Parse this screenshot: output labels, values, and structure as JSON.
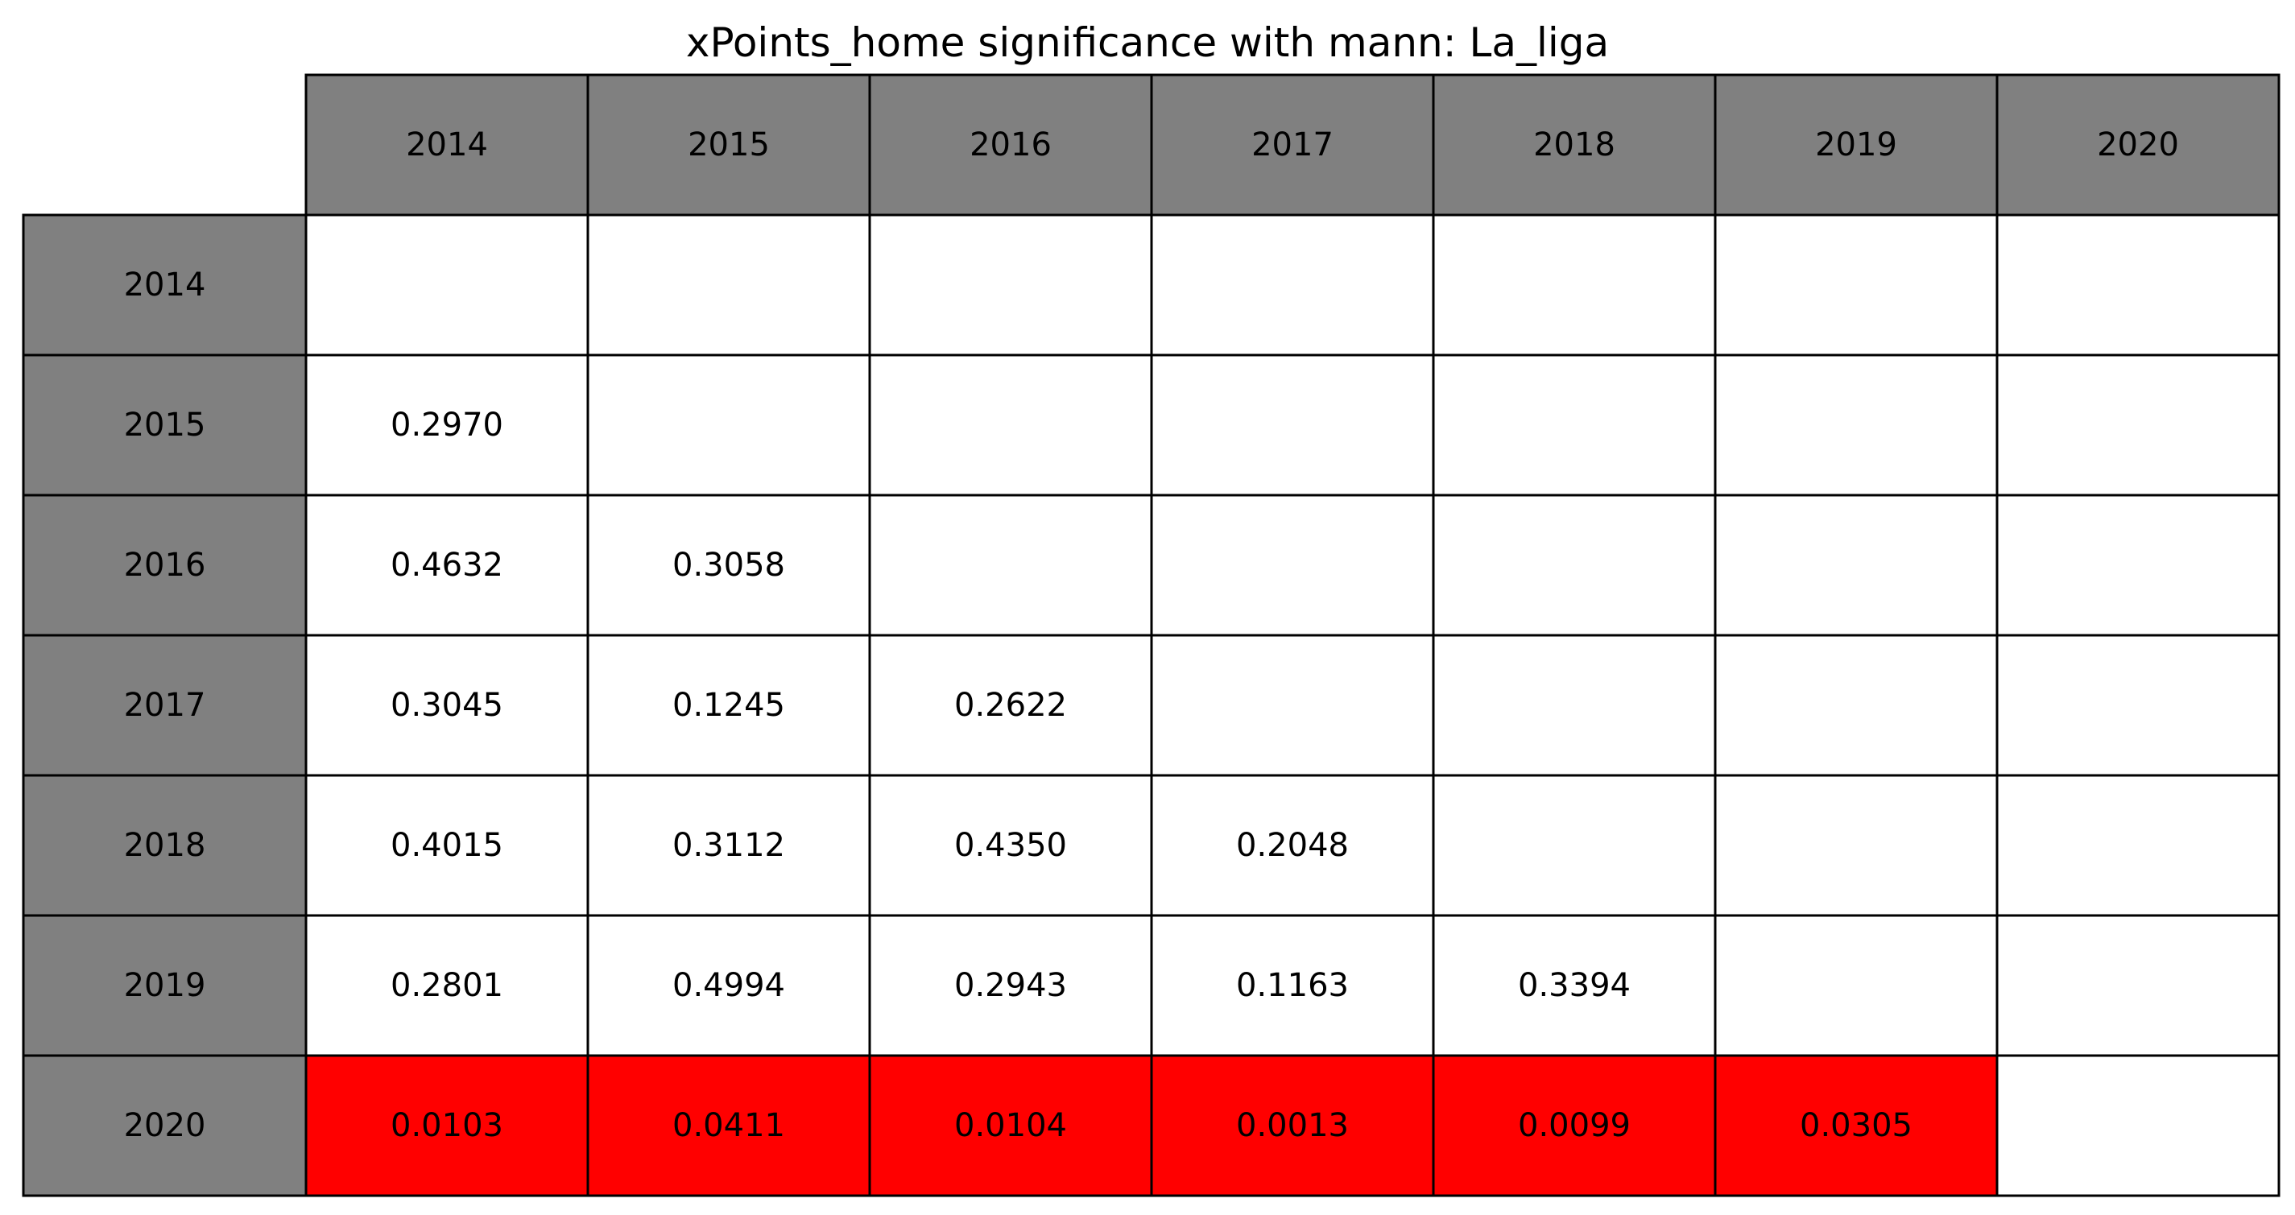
{
  "chart_data": {
    "type": "table",
    "title": "xPoints_home significance with mann: La_liga",
    "columns": [
      "2014",
      "2015",
      "2016",
      "2017",
      "2018",
      "2019",
      "2020"
    ],
    "rows": [
      "2014",
      "2015",
      "2016",
      "2017",
      "2018",
      "2019",
      "2020"
    ],
    "cells": [
      [
        "",
        "",
        "",
        "",
        "",
        "",
        ""
      ],
      [
        "0.2970",
        "",
        "",
        "",
        "",
        "",
        ""
      ],
      [
        "0.4632",
        "0.3058",
        "",
        "",
        "",
        "",
        ""
      ],
      [
        "0.3045",
        "0.1245",
        "0.2622",
        "",
        "",
        "",
        ""
      ],
      [
        "0.4015",
        "0.3112",
        "0.4350",
        "0.2048",
        "",
        "",
        ""
      ],
      [
        "0.2801",
        "0.4994",
        "0.2943",
        "0.1163",
        "0.3394",
        "",
        ""
      ],
      [
        "0.0103",
        "0.0411",
        "0.0104",
        "0.0013",
        "0.0099",
        "0.0305",
        ""
      ]
    ],
    "significance_threshold": 0.05,
    "colors": {
      "header_fill": "#808080",
      "cell_fill": "#ffffff",
      "significant_fill": "#ff0000",
      "border": "#000000"
    }
  }
}
